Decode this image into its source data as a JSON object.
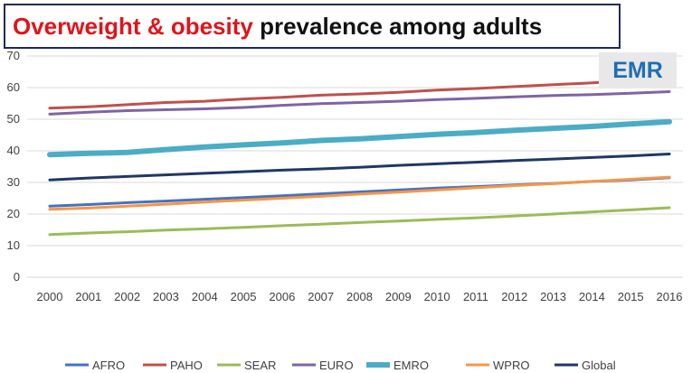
{
  "title": {
    "part1": "Overweight & obesity",
    "part2": " prevalence among adults"
  },
  "badge": "EMR",
  "chart_data": {
    "type": "line",
    "title": "Overweight & obesity prevalence among adults",
    "xlabel": "",
    "ylabel": "",
    "ylim": [
      0,
      70
    ],
    "yticks": [
      0,
      10,
      20,
      30,
      40,
      50,
      60,
      70
    ],
    "grid": true,
    "legend": "bottom",
    "categories": [
      "2000",
      "2001",
      "2002",
      "2003",
      "2004",
      "2005",
      "2006",
      "2007",
      "2008",
      "2009",
      "2010",
      "2011",
      "2012",
      "2013",
      "2014",
      "2015",
      "2016"
    ],
    "series": [
      {
        "name": "AFRO",
        "color": "#4472c4",
        "width": 3,
        "values": [
          22.5,
          23.0,
          23.6,
          24.1,
          24.7,
          25.2,
          25.8,
          26.4,
          27.0,
          27.6,
          28.2,
          28.7,
          29.2,
          29.7,
          30.3,
          30.8,
          31.5
        ]
      },
      {
        "name": "PAHO",
        "color": "#c0504d",
        "width": 3,
        "values": [
          53.5,
          53.9,
          54.6,
          55.3,
          55.7,
          56.4,
          56.9,
          57.6,
          58.0,
          58.5,
          59.2,
          59.7,
          60.3,
          60.9,
          61.5,
          62.2,
          62.8
        ]
      },
      {
        "name": "SEAR",
        "color": "#9bbb59",
        "width": 3,
        "values": [
          13.5,
          14.0,
          14.4,
          14.9,
          15.3,
          15.8,
          16.3,
          16.8,
          17.3,
          17.8,
          18.3,
          18.8,
          19.4,
          20.0,
          20.7,
          21.3,
          22.0
        ]
      },
      {
        "name": "EURO",
        "color": "#8064a2",
        "width": 3,
        "values": [
          51.6,
          52.2,
          52.7,
          53.0,
          53.3,
          53.7,
          54.4,
          54.9,
          55.3,
          55.7,
          56.2,
          56.6,
          57.1,
          57.5,
          57.8,
          58.2,
          58.7
        ]
      },
      {
        "name": "EMRO",
        "color": "#4bacc6",
        "width": 6,
        "values": [
          38.8,
          39.2,
          39.5,
          40.4,
          41.2,
          41.9,
          42.5,
          43.3,
          43.8,
          44.5,
          45.2,
          45.8,
          46.5,
          47.1,
          47.7,
          48.5,
          49.2
        ]
      },
      {
        "name": "WPRO",
        "color": "#f79646",
        "width": 3,
        "values": [
          21.5,
          21.9,
          22.5,
          23.1,
          23.8,
          24.4,
          25.0,
          25.6,
          26.3,
          26.9,
          27.6,
          28.3,
          29.0,
          29.6,
          30.3,
          31.0,
          31.7
        ]
      },
      {
        "name": "Global",
        "color": "#1f3864",
        "width": 3,
        "values": [
          30.8,
          31.4,
          31.9,
          32.4,
          32.9,
          33.4,
          33.9,
          34.3,
          34.8,
          35.4,
          35.9,
          36.4,
          36.9,
          37.4,
          37.9,
          38.4,
          39.0
        ]
      }
    ]
  }
}
